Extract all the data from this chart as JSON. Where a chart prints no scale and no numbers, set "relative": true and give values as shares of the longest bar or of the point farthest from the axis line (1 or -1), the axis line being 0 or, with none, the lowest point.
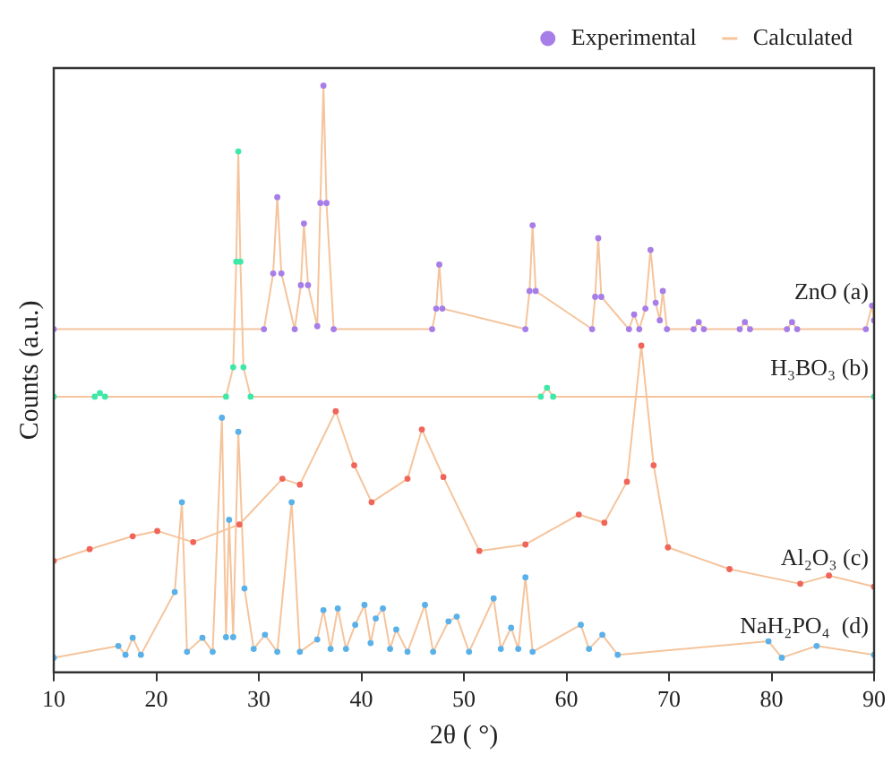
{
  "chart_data": {
    "type": "scatter",
    "relative": true,
    "xlabel": "2θ ( °)",
    "ylabel": "Counts (a.u.)",
    "xlim": [
      10,
      90
    ],
    "xticks": [
      10,
      20,
      30,
      40,
      50,
      60,
      70,
      80,
      90
    ],
    "tick_labels": "x",
    "grid": false,
    "legend": "top right",
    "line_style": "solid",
    "annotations": [
      {
        "text": "ZnO (a)",
        "y": 0.6
      },
      {
        "text": "H₃BO₃ (b)",
        "y": 0.47
      },
      {
        "text": "Al₂O₃ (c)",
        "y": 0.146
      },
      {
        "text": "NaH₂PO₄  (d)",
        "y": 0.03
      }
    ],
    "series": [
      {
        "name": "Experimental",
        "type": "scatter",
        "color": "#a77de8",
        "x": [
          10,
          30.5,
          31.4,
          31.8,
          32.2,
          33.5,
          34.1,
          34.4,
          34.8,
          35.7,
          36.0,
          36.3,
          36.6,
          37.3,
          46.9,
          47.3,
          47.6,
          47.9,
          56.0,
          56.4,
          56.7,
          57.0,
          62.5,
          62.8,
          63.1,
          63.4,
          66.1,
          66.6,
          67.1,
          67.7,
          68.2,
          68.7,
          69.1,
          69.4,
          69.8,
          72.4,
          72.9,
          73.4,
          76.9,
          77.4,
          77.9,
          81.5,
          82.0,
          82.5,
          89.2,
          89.8,
          90,
          10,
          14.0,
          14.5,
          15.0,
          26.8,
          27.5,
          27.8,
          28.0,
          28.2,
          28.5,
          29.2,
          57.5,
          58.1,
          58.7,
          90,
          10,
          13.5,
          17.7,
          20.1,
          23.6,
          28.1,
          32.3,
          34,
          37.5,
          39.3,
          41,
          44.5,
          45.9,
          48,
          51.5,
          56,
          61.2,
          63.7,
          65.9,
          67.3,
          68.5,
          69.9,
          75.9,
          82.8,
          85.6,
          90,
          10,
          16.3,
          17.0,
          17.7,
          18.5,
          21.8,
          22.5,
          23.0,
          24.5,
          25.5,
          26.4,
          26.8,
          27.1,
          27.5,
          28.0,
          28.6,
          29.5,
          30.6,
          31.8,
          33.2,
          34.0,
          35.7,
          36.3,
          37.0,
          37.7,
          38.5,
          39.4,
          40.3,
          40.9,
          41.4,
          42.1,
          42.8,
          43.4,
          44.5,
          46.2,
          47.0,
          48.5,
          49.3,
          50.5,
          52.9,
          53.6,
          54.6,
          55.3,
          56.0,
          56.7,
          61.4,
          62.2,
          63.5,
          65,
          79.7,
          81,
          84.4,
          90
        ],
        "values": [
          0.585,
          0.585,
          0.68,
          0.81,
          0.68,
          0.585,
          0.66,
          0.765,
          0.66,
          0.59,
          0.8,
          1,
          0.8,
          0.585,
          0.585,
          0.62,
          0.695,
          0.62,
          0.585,
          0.65,
          0.762,
          0.65,
          0.585,
          0.64,
          0.74,
          0.64,
          0.585,
          0.61,
          0.585,
          0.62,
          0.72,
          0.63,
          0.6,
          0.65,
          0.585,
          0.585,
          0.597,
          0.585,
          0.585,
          0.597,
          0.585,
          0.585,
          0.597,
          0.585,
          0.585,
          0.625,
          0.6,
          0.47,
          0.47,
          0.476,
          0.47,
          0.47,
          0.52,
          0.7,
          0.888,
          0.7,
          0.52,
          0.47,
          0.47,
          0.485,
          0.47,
          0.47,
          0.19,
          0.21,
          0.232,
          0.241,
          0.222,
          0.252,
          0.33,
          0.32,
          0.445,
          0.353,
          0.29,
          0.33,
          0.414,
          0.333,
          0.207,
          0.218,
          0.269,
          0.255,
          0.325,
          0.557,
          0.353,
          0.213,
          0.176,
          0.151,
          0.165,
          0.146,
          0.025,
          0.045,
          0.03,
          0.059,
          0.03,
          0.137,
          0.29,
          0.035,
          0.059,
          0.035,
          0.434,
          0.06,
          0.26,
          0.06,
          0.41,
          0.143,
          0.04,
          0.064,
          0.035,
          0.29,
          0.035,
          0.056,
          0.106,
          0.04,
          0.109,
          0.04,
          0.081,
          0.115,
          0.05,
          0.092,
          0.109,
          0.04,
          0.073,
          0.035,
          0.115,
          0.035,
          0.087,
          0.095,
          0.035,
          0.126,
          0.04,
          0.076,
          0.04,
          0.162,
          0.035,
          0.081,
          0.04,
          0.064,
          0.03,
          0.053,
          0.025,
          0.045,
          0.03
        ],
        "colors": [
          "#a77de8",
          "#a77de8",
          "#a77de8",
          "#a77de8",
          "#a77de8",
          "#a77de8",
          "#a77de8",
          "#a77de8",
          "#a77de8",
          "#a77de8",
          "#a77de8",
          "#a77de8",
          "#a77de8",
          "#a77de8",
          "#a77de8",
          "#a77de8",
          "#a77de8",
          "#a77de8",
          "#a77de8",
          "#a77de8",
          "#a77de8",
          "#a77de8",
          "#a77de8",
          "#a77de8",
          "#a77de8",
          "#a77de8",
          "#a77de8",
          "#a77de8",
          "#a77de8",
          "#a77de8",
          "#a77de8",
          "#a77de8",
          "#a77de8",
          "#a77de8",
          "#a77de8",
          "#a77de8",
          "#a77de8",
          "#a77de8",
          "#a77de8",
          "#a77de8",
          "#a77de8",
          "#a77de8",
          "#a77de8",
          "#a77de8",
          "#a77de8",
          "#a77de8",
          "#a77de8",
          "#3ee8a8",
          "#3ee8a8",
          "#3ee8a8",
          "#3ee8a8",
          "#3ee8a8",
          "#3ee8a8",
          "#3ee8a8",
          "#3ee8a8",
          "#3ee8a8",
          "#3ee8a8",
          "#3ee8a8",
          "#3ee8a8",
          "#3ee8a8",
          "#3ee8a8",
          "#3ee8a8",
          "#f0655a",
          "#f0655a",
          "#f0655a",
          "#f0655a",
          "#f0655a",
          "#f0655a",
          "#f0655a",
          "#f0655a",
          "#f0655a",
          "#f0655a",
          "#f0655a",
          "#f0655a",
          "#f0655a",
          "#f0655a",
          "#f0655a",
          "#f0655a",
          "#f0655a",
          "#f0655a",
          "#f0655a",
          "#f0655a",
          "#f0655a",
          "#f0655a",
          "#f0655a",
          "#f0655a",
          "#f0655a",
          "#f0655a",
          "#5ab0e8",
          "#5ab0e8",
          "#5ab0e8",
          "#5ab0e8",
          "#5ab0e8",
          "#5ab0e8",
          "#5ab0e8",
          "#5ab0e8",
          "#5ab0e8",
          "#5ab0e8",
          "#5ab0e8",
          "#5ab0e8",
          "#5ab0e8",
          "#5ab0e8",
          "#5ab0e8",
          "#5ab0e8",
          "#5ab0e8",
          "#5ab0e8",
          "#5ab0e8",
          "#5ab0e8",
          "#5ab0e8",
          "#5ab0e8",
          "#5ab0e8",
          "#5ab0e8",
          "#5ab0e8",
          "#5ab0e8",
          "#5ab0e8",
          "#5ab0e8",
          "#5ab0e8",
          "#5ab0e8",
          "#5ab0e8",
          "#5ab0e8",
          "#5ab0e8",
          "#5ab0e8",
          "#5ab0e8",
          "#5ab0e8",
          "#5ab0e8",
          "#5ab0e8",
          "#5ab0e8",
          "#5ab0e8",
          "#5ab0e8",
          "#5ab0e8",
          "#5ab0e8",
          "#5ab0e8",
          "#5ab0e8",
          "#5ab0e8",
          "#5ab0e8",
          "#5ab0e8",
          "#5ab0e8",
          "#5ab0e8",
          "#5ab0e8",
          "#5ab0e8",
          "#5ab0e8"
        ]
      },
      {
        "name": "Calculated",
        "type": "line",
        "color": "#f5c49c",
        "x": [
          10,
          30.5,
          31.4,
          31.8,
          32.2,
          33.5,
          34.1,
          34.4,
          34.8,
          35.7,
          36.0,
          36.3,
          36.6,
          37.3,
          46.9,
          47.3,
          47.6,
          47.9,
          56.0,
          56.4,
          56.7,
          57.0,
          62.5,
          62.8,
          63.1,
          63.4,
          66.1,
          66.6,
          67.1,
          67.7,
          68.2,
          68.7,
          69.1,
          69.4,
          69.8,
          72.4,
          72.9,
          73.4,
          76.9,
          77.4,
          77.9,
          81.5,
          82.0,
          82.5,
          89.2,
          89.8,
          90
        ],
        "values": [
          0.585,
          0.585,
          0.68,
          0.81,
          0.68,
          0.585,
          0.66,
          0.765,
          0.66,
          0.59,
          0.8,
          1,
          0.8,
          0.585,
          0.585,
          0.62,
          0.695,
          0.62,
          0.585,
          0.65,
          0.762,
          0.65,
          0.585,
          0.64,
          0.74,
          0.64,
          0.585,
          0.61,
          0.585,
          0.62,
          0.72,
          0.63,
          0.6,
          0.65,
          0.585,
          0.585,
          0.597,
          0.585,
          0.585,
          0.597,
          0.585,
          0.585,
          0.597,
          0.585,
          0.585,
          0.625,
          0.6
        ]
      },
      {
        "type": "line",
        "color": "#f5c49c",
        "x": [
          10,
          14.0,
          14.5,
          15.0,
          26.8,
          27.5,
          27.8,
          28.0,
          28.2,
          28.5,
          29.2,
          57.5,
          58.1,
          58.7,
          90
        ],
        "values": [
          0.47,
          0.47,
          0.476,
          0.47,
          0.47,
          0.52,
          0.7,
          0.888,
          0.7,
          0.52,
          0.47,
          0.47,
          0.485,
          0.47,
          0.47
        ]
      },
      {
        "type": "line",
        "color": "#f5c49c",
        "x": [
          10,
          13.5,
          17.7,
          20.1,
          23.6,
          28.1,
          32.3,
          34,
          37.5,
          39.3,
          41,
          44.5,
          45.9,
          48,
          51.5,
          56,
          61.2,
          63.7,
          65.9,
          67.3,
          68.5,
          69.9,
          75.9,
          82.8,
          85.6,
          90
        ],
        "values": [
          0.19,
          0.21,
          0.232,
          0.241,
          0.222,
          0.252,
          0.33,
          0.32,
          0.445,
          0.353,
          0.29,
          0.33,
          0.414,
          0.333,
          0.207,
          0.218,
          0.269,
          0.255,
          0.325,
          0.557,
          0.353,
          0.213,
          0.176,
          0.151,
          0.165,
          0.146
        ]
      },
      {
        "type": "line",
        "color": "#f5c49c",
        "x": [
          10,
          16.3,
          17.0,
          17.7,
          18.5,
          21.8,
          22.5,
          23.0,
          24.5,
          25.5,
          26.4,
          26.8,
          27.1,
          27.5,
          28.0,
          28.6,
          29.5,
          30.6,
          31.8,
          33.2,
          34.0,
          35.7,
          36.3,
          37.0,
          37.7,
          38.5,
          39.4,
          40.3,
          40.9,
          41.4,
          42.1,
          42.8,
          43.4,
          44.5,
          46.2,
          47.0,
          48.5,
          49.3,
          50.5,
          52.9,
          53.6,
          54.6,
          55.3,
          56.0,
          56.7,
          61.4,
          62.2,
          63.5,
          65,
          79.7,
          81,
          84.4,
          90
        ],
        "values": [
          0.025,
          0.045,
          0.03,
          0.059,
          0.03,
          0.137,
          0.29,
          0.035,
          0.059,
          0.035,
          0.434,
          0.06,
          0.26,
          0.06,
          0.41,
          0.143,
          0.04,
          0.064,
          0.035,
          0.29,
          0.035,
          0.056,
          0.106,
          0.04,
          0.109,
          0.04,
          0.081,
          0.115,
          0.05,
          0.092,
          0.109,
          0.04,
          0.073,
          0.035,
          0.115,
          0.035,
          0.087,
          0.095,
          0.035,
          0.126,
          0.04,
          0.076,
          0.04,
          0.162,
          0.035,
          0.081,
          0.04,
          0.064,
          0.03,
          0.053,
          0.025,
          0.045,
          0.03
        ]
      }
    ]
  }
}
